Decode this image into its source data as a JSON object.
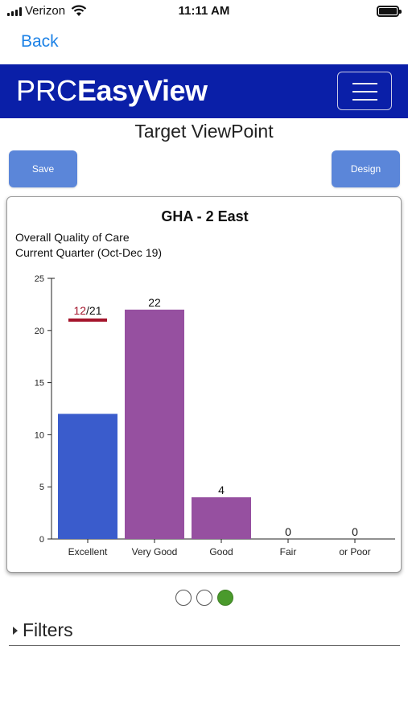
{
  "status_bar": {
    "carrier": "Verizon",
    "time": "11:11 AM"
  },
  "nav": {
    "back_label": "Back"
  },
  "brand": {
    "logo_prefix": "PRC",
    "logo_suffix": "EasyView",
    "bar_color": "#0a1fa8"
  },
  "page": {
    "title": "Target ViewPoint"
  },
  "actions": {
    "save_label": "Save",
    "design_label": "Design"
  },
  "chart_card": {
    "title": "GHA - 2 East",
    "subtitle_1": "Overall Quality of Care",
    "subtitle_2": "Current Quarter (Oct-Dec 19)"
  },
  "chart_data": {
    "type": "bar",
    "categories": [
      "Excellent",
      "Very Good",
      "Good",
      "Fair",
      "or Poor"
    ],
    "values": [
      12,
      22,
      4,
      0,
      0
    ],
    "data_labels": [
      "",
      "22",
      "4",
      "0",
      "0"
    ],
    "bar_colors": [
      "#3a5ccc",
      "#9650a0",
      "#9650a0",
      "#9650a0",
      "#9650a0"
    ],
    "ylim": [
      0,
      25
    ],
    "yticks": [
      0,
      5,
      10,
      15,
      20,
      25
    ],
    "target": {
      "category": "Excellent",
      "value": 21,
      "achieved": 12,
      "label_achieved": "12",
      "label_sep": "/",
      "label_target": "21",
      "color": "#a4152c"
    }
  },
  "pager": {
    "pages": 3,
    "active_index": 2,
    "active_color": "#4a9a2c"
  },
  "filters": {
    "label": "Filters"
  }
}
